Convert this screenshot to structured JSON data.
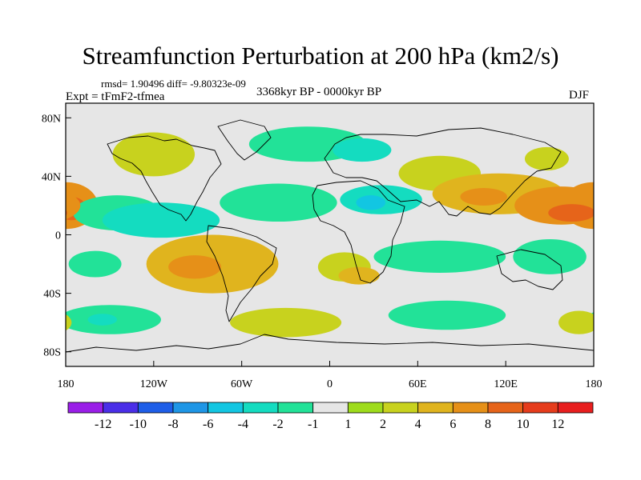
{
  "title": "Streamfunction Perturbation at 200 hPa (km2/s)",
  "stats": "rmsd= 1.90496 diff= -9.80323e-09",
  "experiment": "Expt = tFmF2-tfmea",
  "period": "3368kyr BP - 0000kyr BP",
  "season": "DJF",
  "chart_data": {
    "type": "heatmap",
    "title": "Streamfunction Perturbation at 200 hPa (km2/s)",
    "xlabel": "",
    "ylabel": "",
    "xlim": [
      -180,
      180
    ],
    "ylim": [
      -90,
      90
    ],
    "x_ticks": [
      {
        "value": -180,
        "label": "180"
      },
      {
        "value": -120,
        "label": "120W"
      },
      {
        "value": -60,
        "label": "60W"
      },
      {
        "value": 0,
        "label": "0"
      },
      {
        "value": 60,
        "label": "60E"
      },
      {
        "value": 120,
        "label": "120E"
      },
      {
        "value": 180,
        "label": "180"
      }
    ],
    "y_ticks": [
      {
        "value": 80,
        "label": "80N"
      },
      {
        "value": 40,
        "label": "40N"
      },
      {
        "value": 0,
        "label": "0"
      },
      {
        "value": -40,
        "label": "40S"
      },
      {
        "value": -80,
        "label": "80S"
      }
    ],
    "colorbar": {
      "labels": [
        "-12",
        "-10",
        "-8",
        "-6",
        "-4",
        "-2",
        "-1",
        "1",
        "2",
        "4",
        "6",
        "8",
        "10",
        "12"
      ],
      "colors": [
        "#9a1ee8",
        "#4a2ee8",
        "#1e5ee8",
        "#1e96e6",
        "#12c6e2",
        "#14dcc0",
        "#22e298",
        "#e6e6e6",
        "#9edc1c",
        "#c8d21e",
        "#e0b41e",
        "#e69018",
        "#e6641a",
        "#e63c1c",
        "#e81e1e"
      ]
    },
    "regions": [
      {
        "name": "dipole-west-pacific-north",
        "lon": -180,
        "lat": 20,
        "rlon": 22,
        "rlat": 16,
        "value": 6
      },
      {
        "name": "dipole-west-pacific-north-core",
        "lon": -176,
        "lat": 18,
        "rlon": 10,
        "rlat": 8,
        "value": 8
      },
      {
        "name": "north-pacific-south-band",
        "lon": -145,
        "lat": 15,
        "rlon": 30,
        "rlat": 12,
        "value": -2
      },
      {
        "name": "subtropical-pacific-low",
        "lon": -115,
        "lat": 10,
        "rlon": 40,
        "rlat": 12,
        "value": -4
      },
      {
        "name": "tropical-atlantic-band",
        "lon": -35,
        "lat": 22,
        "rlon": 40,
        "rlat": 13,
        "value": -2
      },
      {
        "name": "north-africa-low",
        "lon": 35,
        "lat": 24,
        "rlon": 28,
        "rlat": 10,
        "value": -4
      },
      {
        "name": "north-africa-low-core",
        "lon": 28,
        "lat": 22,
        "rlon": 10,
        "rlat": 5,
        "value": -6
      },
      {
        "name": "north-america-ridge",
        "lon": -120,
        "lat": 55,
        "rlon": 28,
        "rlat": 15,
        "value": 2
      },
      {
        "name": "greenland-trough",
        "lon": -15,
        "lat": 62,
        "rlon": 40,
        "rlat": 12,
        "value": -2
      },
      {
        "name": "europe-trough",
        "lon": 22,
        "lat": 58,
        "rlon": 20,
        "rlat": 8,
        "value": -4
      },
      {
        "name": "siberia-ridge",
        "lon": 75,
        "lat": 42,
        "rlon": 28,
        "rlat": 12,
        "value": 2
      },
      {
        "name": "east-asia-high",
        "lon": 115,
        "lat": 28,
        "rlon": 45,
        "rlat": 14,
        "value": 4
      },
      {
        "name": "east-asia-high-core",
        "lon": 105,
        "lat": 26,
        "rlon": 16,
        "rlat": 6,
        "value": 6
      },
      {
        "name": "north-west-pacific-high",
        "lon": 158,
        "lat": 20,
        "rlon": 32,
        "rlat": 13,
        "value": 6
      },
      {
        "name": "north-west-pacific-high-core",
        "lon": 165,
        "lat": 15,
        "rlon": 16,
        "rlat": 6,
        "value": 8
      },
      {
        "name": "kamchatka-ridge",
        "lon": 148,
        "lat": 52,
        "rlon": 15,
        "rlat": 8,
        "value": 2
      },
      {
        "name": "south-america-high",
        "lon": -80,
        "lat": -20,
        "rlon": 45,
        "rlat": 20,
        "value": 4
      },
      {
        "name": "south-america-high-core",
        "lon": -92,
        "lat": -22,
        "rlon": 18,
        "rlat": 8,
        "value": 6
      },
      {
        "name": "south-atlantic-high",
        "lon": 10,
        "lat": -22,
        "rlon": 18,
        "rlat": 10,
        "value": 2
      },
      {
        "name": "south-africa-high",
        "lon": 20,
        "lat": -28,
        "rlon": 14,
        "rlat": 6,
        "value": 4
      },
      {
        "name": "south-indian-low",
        "lon": 75,
        "lat": -15,
        "rlon": 45,
        "rlat": 11,
        "value": -2
      },
      {
        "name": "south-pacific-low",
        "lon": 150,
        "lat": -15,
        "rlon": 25,
        "rlat": 12,
        "value": -2
      },
      {
        "name": "south-east-pacific-low",
        "lon": -160,
        "lat": -20,
        "rlon": 18,
        "rlat": 9,
        "value": -2
      },
      {
        "name": "southern-ocean-ridge-atlantic",
        "lon": -30,
        "lat": -60,
        "rlon": 38,
        "rlat": 10,
        "value": 2
      },
      {
        "name": "southern-ocean-pacific-low",
        "lon": -150,
        "lat": -58,
        "rlon": 35,
        "rlat": 10,
        "value": -2
      },
      {
        "name": "southern-ocean-pacific-low-core",
        "lon": -155,
        "lat": -58,
        "rlon": 10,
        "rlat": 4,
        "value": -4
      },
      {
        "name": "southern-ocean-indian-low",
        "lon": 80,
        "lat": -55,
        "rlon": 40,
        "rlat": 10,
        "value": -2
      },
      {
        "name": "southern-ocean-east-ridge",
        "lon": 170,
        "lat": -60,
        "rlon": 14,
        "rlat": 8,
        "value": 2
      }
    ]
  }
}
